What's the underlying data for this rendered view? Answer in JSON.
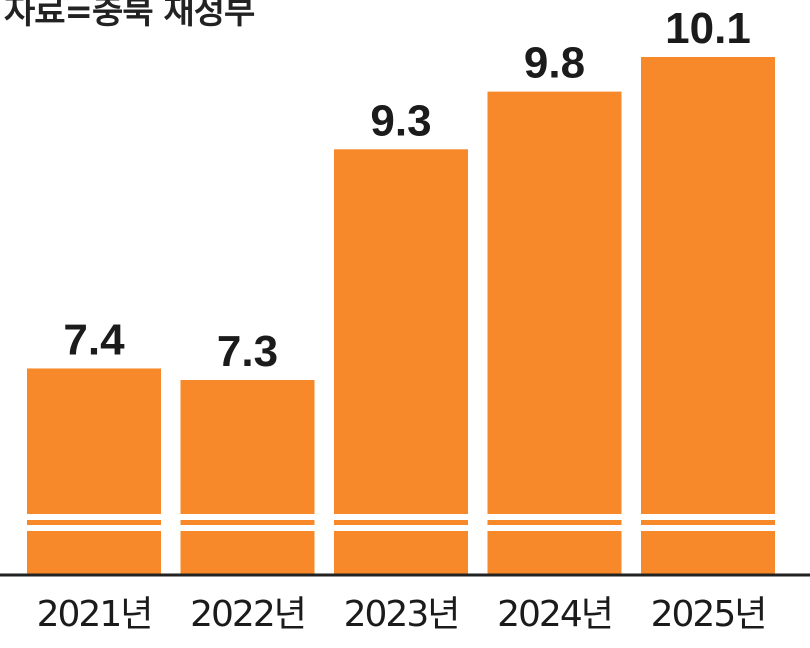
{
  "source": "자료=충북 재정부",
  "colors": {
    "bar": "#f7892a",
    "axis": "#222222",
    "label": "#1b1b1b",
    "break_gap": "#ffffff"
  },
  "chart_data": {
    "type": "bar",
    "categories": [
      "2021년",
      "2022년",
      "2023년",
      "2024년",
      "2025년"
    ],
    "values": [
      7.4,
      7.3,
      9.3,
      9.8,
      10.1
    ],
    "data_labels": [
      "7.4",
      "7.3",
      "9.3",
      "9.8",
      "10.1"
    ],
    "title": "",
    "xlabel": "",
    "ylabel": "",
    "y_axis_break": true,
    "grid": false,
    "legend": "none"
  }
}
